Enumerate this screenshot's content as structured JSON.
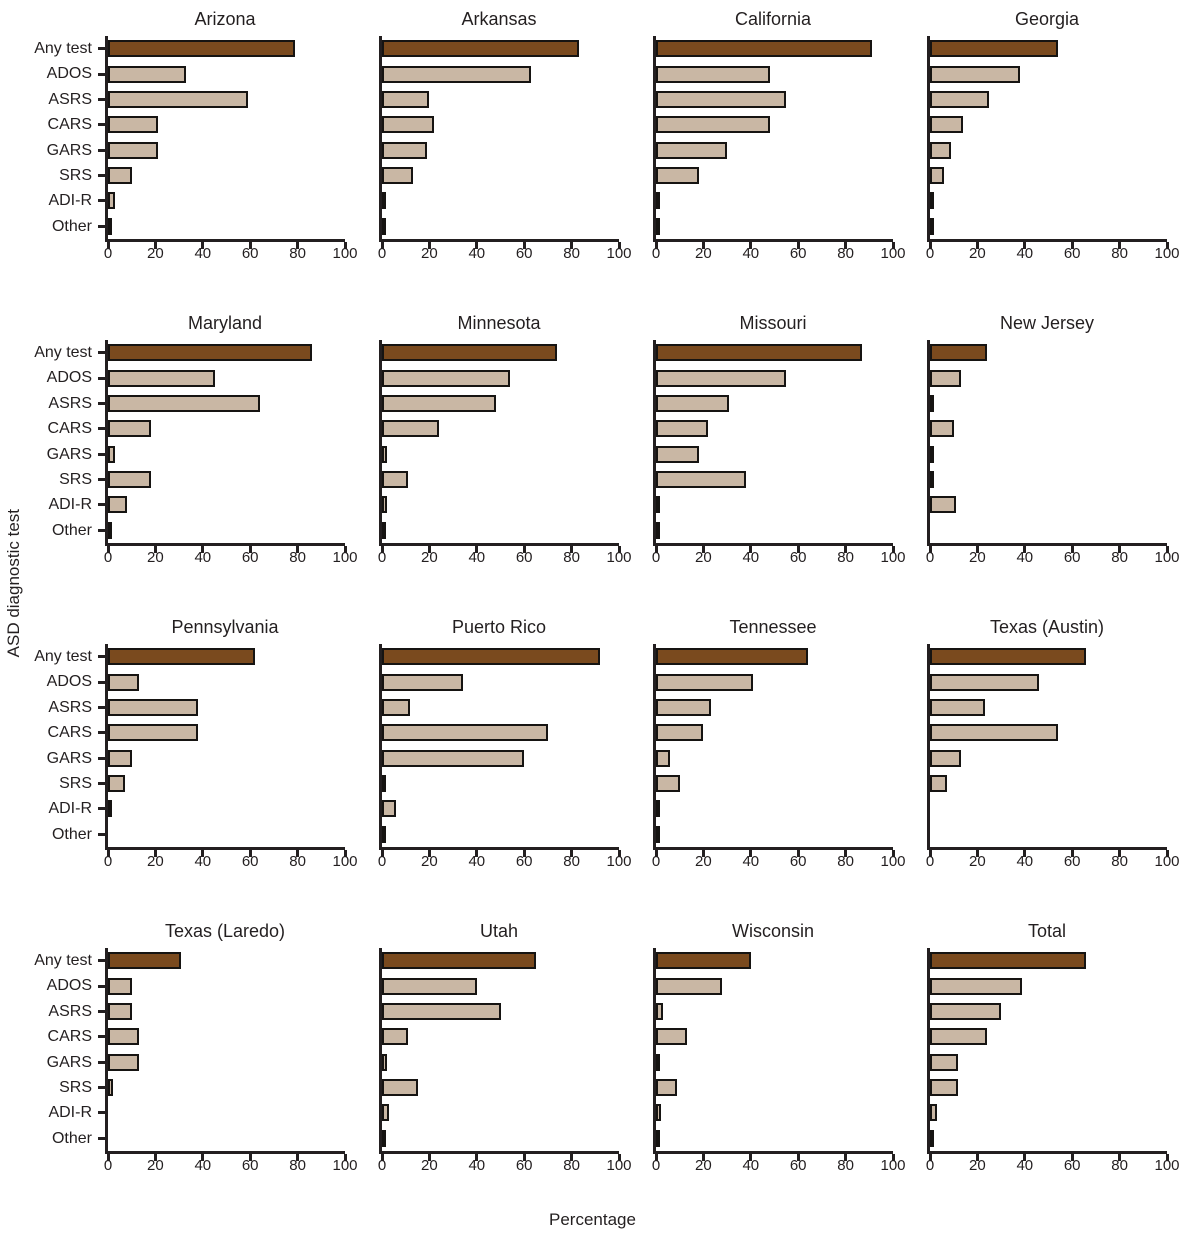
{
  "figure": {
    "ylabel": "ASD diagnostic test",
    "xlabel": "Percentage"
  },
  "chart_data": {
    "type": "bar",
    "orientation": "horizontal",
    "categories": [
      "Any test",
      "ADOS",
      "ASRS",
      "CARS",
      "GARS",
      "SRS",
      "ADI-R",
      "Other"
    ],
    "xlabel": "Percentage",
    "ylabel": "ASD diagnostic test",
    "xlim": [
      0,
      100
    ],
    "xticks": [
      0,
      20,
      40,
      60,
      80,
      100
    ],
    "grid": false,
    "colors": {
      "any_test_bar": "#7a4a1e",
      "other_bar": "#c9b7a4",
      "bar_outline": "#161412",
      "axis": "#231f20"
    },
    "panels": [
      {
        "title": "Arizona",
        "values": [
          79,
          33,
          59,
          21,
          21,
          10,
          3,
          0.7
        ]
      },
      {
        "title": "Arkansas",
        "values": [
          83,
          63,
          20,
          22,
          19,
          13,
          0.7,
          1
        ]
      },
      {
        "title": "California",
        "values": [
          91,
          48,
          55,
          48,
          30,
          18,
          0.7,
          1.5
        ]
      },
      {
        "title": "Georgia",
        "values": [
          54,
          38,
          25,
          14,
          9,
          6,
          1.2,
          0.7
        ]
      },
      {
        "title": "Maryland",
        "values": [
          86,
          45,
          64,
          18,
          3,
          18,
          8,
          0.7
        ]
      },
      {
        "title": "Minnesota",
        "values": [
          74,
          54,
          48,
          24,
          2,
          11,
          2,
          1
        ]
      },
      {
        "title": "Missouri",
        "values": [
          87,
          55,
          31,
          22,
          18,
          38,
          0.7,
          1
        ]
      },
      {
        "title": "New Jersey",
        "values": [
          24,
          13,
          0.7,
          10,
          1.5,
          0.7,
          11,
          0
        ]
      },
      {
        "title": "Pennsylvania",
        "values": [
          62,
          13,
          38,
          38,
          10,
          7,
          1.2,
          0
        ]
      },
      {
        "title": "Puerto Rico",
        "values": [
          92,
          34,
          12,
          70,
          60,
          1.5,
          6,
          0.5
        ]
      },
      {
        "title": "Tennessee",
        "values": [
          64,
          41,
          23,
          20,
          6,
          10,
          0.4,
          1
        ]
      },
      {
        "title": "Texas (Austin)",
        "values": [
          66,
          46,
          23,
          54,
          13,
          7,
          0,
          0
        ]
      },
      {
        "title": "Texas (Laredo)",
        "values": [
          31,
          10,
          10,
          13,
          13,
          2,
          0,
          0
        ]
      },
      {
        "title": "Utah",
        "values": [
          65,
          40,
          50,
          11,
          2,
          15,
          3,
          1
        ]
      },
      {
        "title": "Wisconsin",
        "values": [
          40,
          28,
          3,
          13,
          1.5,
          9,
          2,
          0.5
        ]
      },
      {
        "title": "Total",
        "values": [
          66,
          39,
          30,
          24,
          12,
          12,
          3,
          1
        ]
      }
    ]
  }
}
